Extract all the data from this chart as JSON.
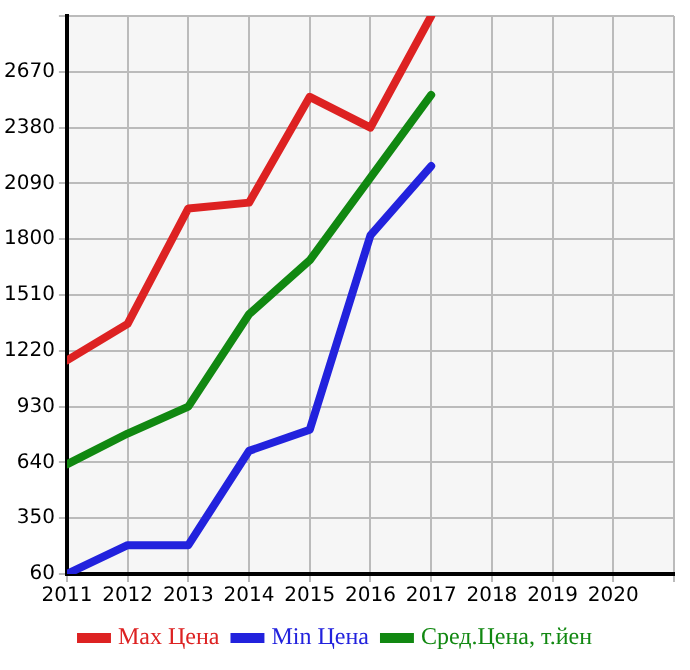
{
  "chart_data": {
    "type": "line",
    "x": [
      2011,
      2012,
      2013,
      2014,
      2015,
      2016,
      2017
    ],
    "series": [
      {
        "name": "Max Цена",
        "color": "#dd2222",
        "values": [
          1170,
          1360,
          1960,
          1990,
          2540,
          2380,
          2960
        ]
      },
      {
        "name": "Min Цена",
        "color": "#2222dd",
        "values": [
          60,
          210,
          210,
          700,
          810,
          1820,
          2180
        ]
      },
      {
        "name": "Сред.Цена, т.йен",
        "color": "#118811",
        "values": [
          630,
          790,
          930,
          1410,
          1690,
          2120,
          2550
        ]
      }
    ],
    "xlim": [
      2011,
      2021
    ],
    "xticks": [
      2011,
      2012,
      2013,
      2014,
      2015,
      2016,
      2017,
      2018,
      2019,
      2020,
      {
        "value": 2021,
        "label": null
      }
    ],
    "ylim": [
      60,
      2960
    ],
    "yticks": [
      60,
      350,
      640,
      930,
      1220,
      1510,
      1800,
      2090,
      2380,
      2670,
      {
        "value": 2960,
        "label": null
      }
    ],
    "grid": true,
    "legend": "bottom",
    "marker": "none",
    "line_style": "solid"
  }
}
